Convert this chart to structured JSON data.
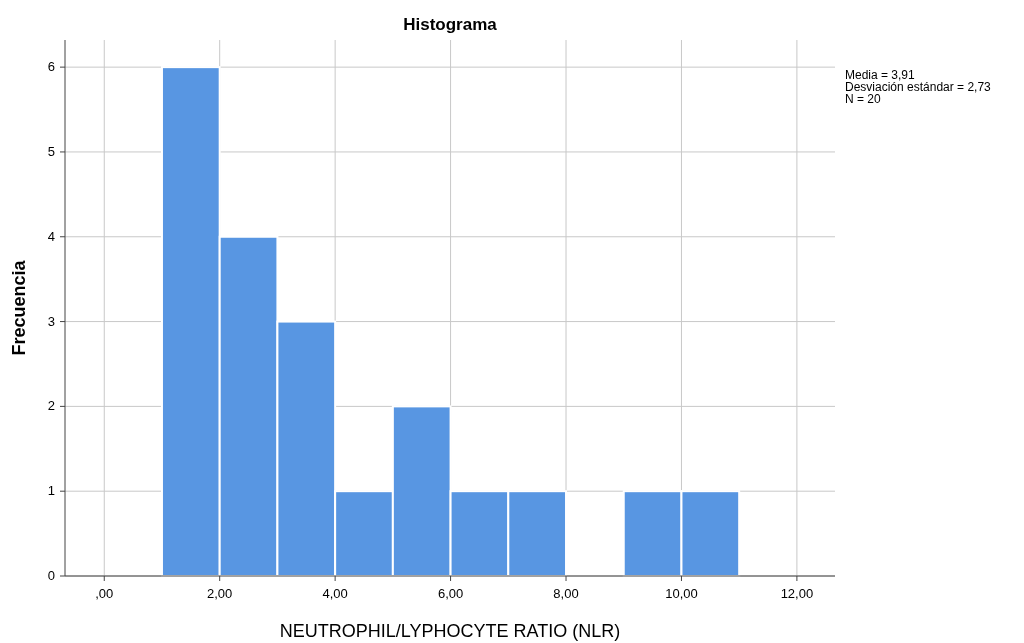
{
  "chart_data": {
    "type": "histogram",
    "title": "Histograma",
    "xlabel": "NEUTROPHIL/LYPHOCYTE RATIO (NLR)",
    "ylabel": "Frecuencia",
    "bins": [
      1,
      2,
      3,
      4,
      5,
      6,
      7,
      8,
      9,
      10,
      11
    ],
    "values": [
      6,
      4,
      3,
      1,
      2,
      1,
      1,
      0,
      1,
      1
    ],
    "color": "#5896e2",
    "xlim": [
      -0.68,
      12.66
    ],
    "ylim": [
      0,
      6.32
    ],
    "xticks": [
      {
        "value": 0,
        "label": ",00"
      },
      {
        "value": 2,
        "label": "2,00"
      },
      {
        "value": 4,
        "label": "4,00"
      },
      {
        "value": 6,
        "label": "6,00"
      },
      {
        "value": 8,
        "label": "8,00"
      },
      {
        "value": 10,
        "label": "10,00"
      },
      {
        "value": 12,
        "label": "12,00"
      }
    ],
    "yticks": [
      0,
      1,
      2,
      3,
      4,
      5,
      6
    ],
    "grid": true,
    "annotations": [
      "Media = 3,91",
      "Desviación estándar = 2,73",
      "N = 20"
    ]
  }
}
